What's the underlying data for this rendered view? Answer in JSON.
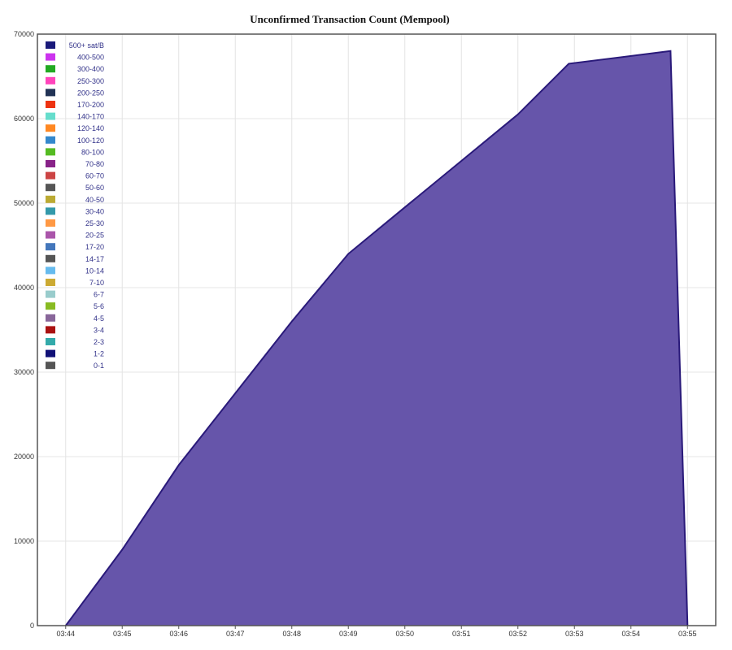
{
  "chart_data": {
    "type": "area",
    "title": "Unconfirmed Transaction Count (Mempool)",
    "xlabel": "",
    "ylabel": "",
    "x_ticks": [
      "03:44",
      "03:45",
      "03:46",
      "03:47",
      "03:48",
      "03:49",
      "03:50",
      "03:51",
      "03:52",
      "03:53",
      "03:54",
      "03:55"
    ],
    "y_ticks": [
      "0",
      "10000",
      "20000",
      "30000",
      "40000",
      "50000",
      "60000",
      "70000"
    ],
    "xlim": [
      "03:43:30",
      "03:55:30"
    ],
    "ylim": [
      0,
      70000
    ],
    "grid": true,
    "legend_position": "top-left",
    "legend": [
      {
        "label": "500+ sat/B",
        "color": "#1a1a7a"
      },
      {
        "label": "400-500",
        "color": "#cc33ee"
      },
      {
        "label": "300-400",
        "color": "#22aa22"
      },
      {
        "label": "250-300",
        "color": "#ff44bb"
      },
      {
        "label": "200-250",
        "color": "#223355"
      },
      {
        "label": "170-200",
        "color": "#ee3311"
      },
      {
        "label": "140-170",
        "color": "#66ddcc"
      },
      {
        "label": "120-140",
        "color": "#ff8822"
      },
      {
        "label": "100-120",
        "color": "#3388cc"
      },
      {
        "label": "80-100",
        "color": "#55bb22"
      },
      {
        "label": "70-80",
        "color": "#882288"
      },
      {
        "label": "60-70",
        "color": "#cc4444"
      },
      {
        "label": "50-60",
        "color": "#555555"
      },
      {
        "label": "40-50",
        "color": "#bbaa33"
      },
      {
        "label": "30-40",
        "color": "#3399aa"
      },
      {
        "label": "25-30",
        "color": "#ff9944"
      },
      {
        "label": "20-25",
        "color": "#aa55aa"
      },
      {
        "label": "17-20",
        "color": "#4477bb"
      },
      {
        "label": "14-17",
        "color": "#555555"
      },
      {
        "label": "10-14",
        "color": "#66bbee"
      },
      {
        "label": "7-10",
        "color": "#ccaa33"
      },
      {
        "label": "6-7",
        "color": "#99cccc"
      },
      {
        "label": "5-6",
        "color": "#88bb22"
      },
      {
        "label": "4-5",
        "color": "#886699"
      },
      {
        "label": "3-4",
        "color": "#aa1111"
      },
      {
        "label": "2-3",
        "color": "#33aaaa"
      },
      {
        "label": "1-2",
        "color": "#111177"
      },
      {
        "label": "0-1",
        "color": "#555555"
      }
    ],
    "series": [
      {
        "name": "500+ sat/B",
        "color": "#6655aa",
        "line_color": "#2a1a7a",
        "points": [
          {
            "x": "03:44:00",
            "y": 0
          },
          {
            "x": "03:45:00",
            "y": 9000
          },
          {
            "x": "03:46:00",
            "y": 19000
          },
          {
            "x": "03:47:00",
            "y": 27500
          },
          {
            "x": "03:48:00",
            "y": 36000
          },
          {
            "x": "03:49:00",
            "y": 44000
          },
          {
            "x": "03:50:00",
            "y": 49500
          },
          {
            "x": "03:51:00",
            "y": 55000
          },
          {
            "x": "03:52:00",
            "y": 60500
          },
          {
            "x": "03:52:54",
            "y": 66500
          },
          {
            "x": "03:54:42",
            "y": 68000
          },
          {
            "x": "03:55:00",
            "y": 0
          }
        ]
      }
    ]
  }
}
